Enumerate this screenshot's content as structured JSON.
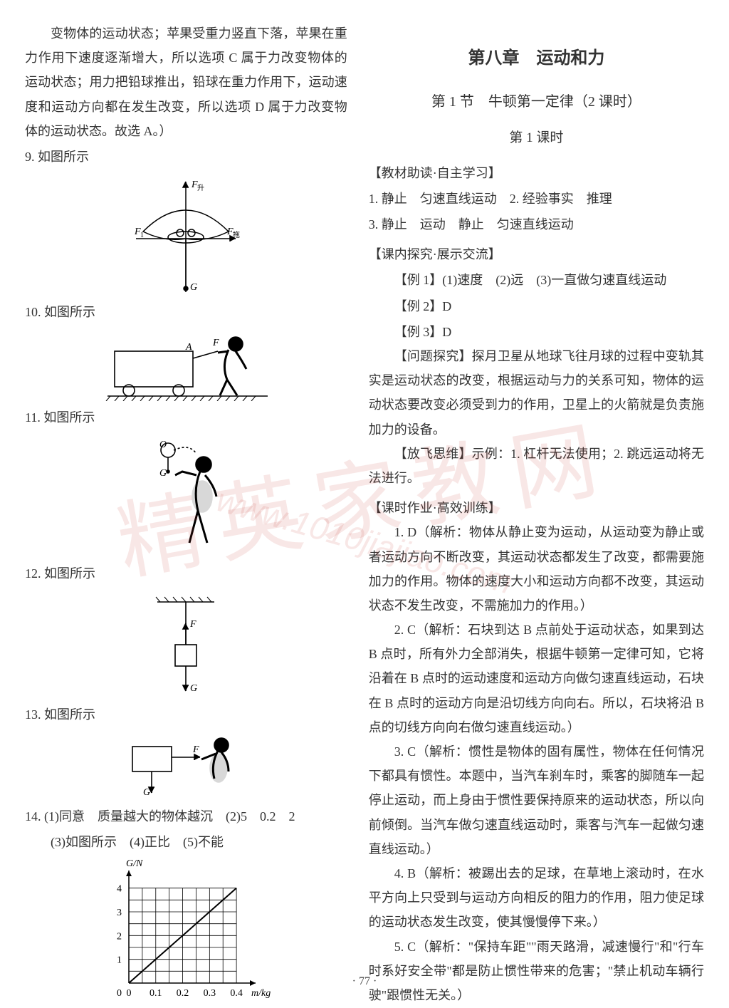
{
  "watermark": {
    "text": "精英家教网",
    "url": "www.1010jiajiao.com"
  },
  "pageNumber": "· 77 ·",
  "left": {
    "intro": "变物体的运动状态；苹果受重力竖直下落，苹果在重力作用下速度逐渐增大，所以选项 C 属于力改变物体的运动状态；用力把铅球推出，铅球在重力作用下，运动速度和运动方向都在发生改变，所以选项 D 属于力改变物体的运动状态。故选 A。）",
    "q9": "9. 如图所示",
    "q10": "10. 如图所示",
    "q11": "11. 如图所示",
    "q12": "12. 如图所示",
    "q13": "13. 如图所示",
    "q14a": "14. (1)同意　质量越大的物体越沉　(2)5　0.2　2",
    "q14b": "(3)如图所示　(4)正比　(5)不能",
    "chart": {
      "type": "line",
      "xLabel": "m/kg",
      "yLabel": "G/N",
      "xTicks": [
        "0",
        "0.1",
        "0.2",
        "0.3",
        "0.4"
      ],
      "yTicks": [
        "0",
        "1",
        "2",
        "3",
        "4"
      ],
      "xMax": 0.45,
      "yMax": 4.5,
      "points": [
        [
          0,
          0
        ],
        [
          0.1,
          1
        ],
        [
          0.2,
          2
        ],
        [
          0.3,
          3
        ],
        [
          0.4,
          4
        ]
      ],
      "lineColor": "#000000",
      "gridColor": "#000000",
      "background": "#ffffff",
      "fontSize": 14,
      "markerStyle": "none",
      "lineWidth": 2
    }
  },
  "right": {
    "chapter": "第八章　运动和力",
    "section": "第 1 节　牛顿第一定律（2 课时）",
    "lesson": "第 1 课时",
    "sub1": "【教材助读·自主学习】",
    "s1a": "1. 静止　匀速直线运动　2. 经验事实　推理",
    "s1b": "3. 静止　运动　静止　匀速直线运动",
    "sub2": "【课内探究·展示交流】",
    "ex1": "【例 1】(1)速度　(2)远　(3)一直做匀速直线运动",
    "ex2": "【例 2】D",
    "ex3": "【例 3】D",
    "probHead": "【问题探究】探月卫星从地球飞往月球的过程中变轨其实是运动状态的改变，根据运动与力的关系可知，物体的运动状态要改变必须受到力的作用，卫星上的火箭就是负责施加力的设备。",
    "fly": "【放飞思维】示例：1. 杠杆无法使用；2. 跳远运动将无法进行。",
    "sub3": "【课时作业·高效训练】",
    "a1": "1. D（解析：物体从静止变为运动，从运动变为静止或者运动方向不断改变，其运动状态都发生了改变，都需要施加力的作用。物体的速度大小和运动方向都不改变，其运动状态不发生改变，不需施加力的作用。）",
    "a2": "2. C（解析：石块到达 B 点前处于运动状态，如果到达 B 点时，所有外力全部消失，根据牛顿第一定律可知，它将沿着在 B 点时的运动速度和运动方向做匀速直线运动，石块在 B 点时的运动方向是沿切线方向向右。所以，石块将沿 B 点的切线方向向右做匀速直线运动。）",
    "a3": "3. C（解析：惯性是物体的固有属性，物体在任何情况下都具有惯性。本题中，当汽车刹车时，乘客的脚随车一起停止运动，而上身由于惯性要保持原来的运动状态，所以向前倾倒。当汽车做匀速直线运动时，乘客与汽车一起做匀速直线运动。）",
    "a4": "4. B（解析：被踢出去的足球，在草地上滚动时，在水平方向上只受到与运动方向相反的阻力的作用，阻力使足球的运动状态发生改变，使其慢慢停下来。）",
    "a5": "5. C（解析：\"保持车距\"\"雨天路滑，减速慢行\"和\"行车时系好安全带\"都是防止惯性带来的危害；\"禁止机动车辆行驶\"跟惯性无关。）"
  }
}
